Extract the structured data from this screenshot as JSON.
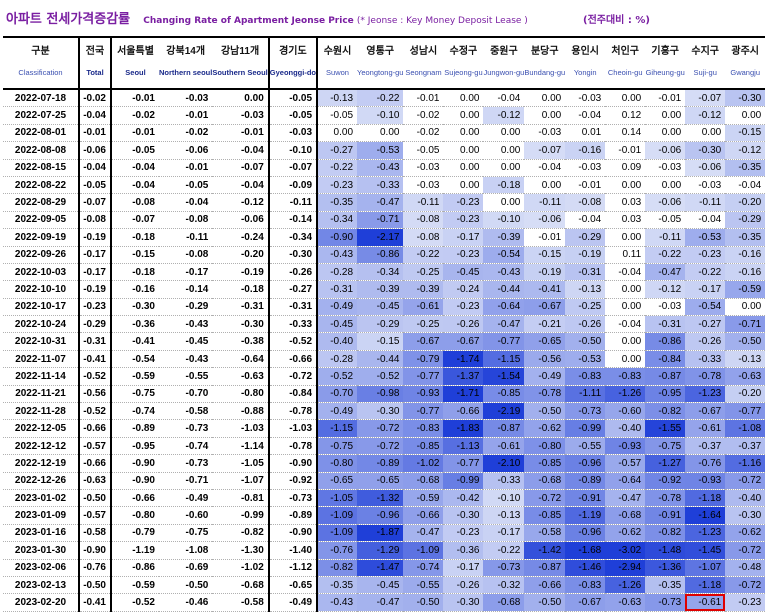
{
  "title": {
    "korean": "아파트 전세가격증감률",
    "english": "Changing Rate of Apartment Jeonse Price",
    "note": "(* Jeonse : Key Money Deposit Lease )",
    "unit": "(전주대비 : %)"
  },
  "columns": [
    {
      "ko": "구분",
      "en": "Classification"
    },
    {
      "ko": "전국",
      "en": "Total"
    },
    {
      "ko": "서울특별",
      "en": "Seoul"
    },
    {
      "ko": "강북14개",
      "en": "Northern seoul"
    },
    {
      "ko": "강남11개",
      "en": "Southern Seoul"
    },
    {
      "ko": "경기도",
      "en": "Gyeonggi-do"
    },
    {
      "ko": "수원시",
      "en": "Suwon"
    },
    {
      "ko": "영통구",
      "en": "Yeongtong-gu"
    },
    {
      "ko": "성남시",
      "en": "Seongnam"
    },
    {
      "ko": "수정구",
      "en": "Sujeong-gu"
    },
    {
      "ko": "중원구",
      "en": "Jungwon-gu"
    },
    {
      "ko": "분당구",
      "en": "Bundang-gu"
    },
    {
      "ko": "용인시",
      "en": "Yongin"
    },
    {
      "ko": "처인구",
      "en": "Cheoin-gu"
    },
    {
      "ko": "기흥구",
      "en": "Giheung-gu"
    },
    {
      "ko": "수지구",
      "en": "Suji-gu"
    },
    {
      "ko": "광주시",
      "en": "Gwangju"
    }
  ],
  "rows": [
    [
      "2022-07-18",
      "-0.02",
      "-0.01",
      "-0.03",
      "0.00",
      "-0.05",
      "-0.13",
      "-0.22",
      "-0.01",
      "0.00",
      "-0.04",
      "0.00",
      "-0.03",
      "0.00",
      "-0.01",
      "-0.07",
      "-0.30"
    ],
    [
      "2022-07-25",
      "-0.04",
      "-0.02",
      "-0.01",
      "-0.03",
      "-0.05",
      "-0.05",
      "-0.10",
      "-0.02",
      "0.00",
      "-0.12",
      "0.00",
      "-0.04",
      "0.12",
      "0.00",
      "-0.12",
      "0.00"
    ],
    [
      "2022-08-01",
      "-0.01",
      "-0.01",
      "-0.02",
      "-0.01",
      "-0.03",
      "0.00",
      "0.00",
      "-0.02",
      "0.00",
      "0.00",
      "-0.03",
      "0.01",
      "0.14",
      "0.00",
      "0.00",
      "-0.15"
    ],
    [
      "2022-08-08",
      "-0.06",
      "-0.05",
      "-0.06",
      "-0.04",
      "-0.10",
      "-0.27",
      "-0.53",
      "-0.05",
      "0.00",
      "0.00",
      "-0.07",
      "-0.16",
      "-0.01",
      "-0.06",
      "-0.30",
      "-0.12"
    ],
    [
      "2022-08-15",
      "-0.04",
      "-0.04",
      "-0.01",
      "-0.07",
      "-0.07",
      "-0.22",
      "-0.43",
      "-0.03",
      "0.00",
      "0.00",
      "-0.04",
      "-0.03",
      "0.09",
      "-0.03",
      "-0.06",
      "-0.35"
    ],
    [
      "2022-08-22",
      "-0.05",
      "-0.04",
      "-0.05",
      "-0.04",
      "-0.09",
      "-0.23",
      "-0.33",
      "-0.03",
      "0.00",
      "-0.18",
      "0.00",
      "-0.01",
      "0.00",
      "0.00",
      "-0.03",
      "-0.04"
    ],
    [
      "2022-08-29",
      "-0.07",
      "-0.08",
      "-0.04",
      "-0.12",
      "-0.11",
      "-0.35",
      "-0.47",
      "-0.11",
      "-0.23",
      "0.00",
      "-0.11",
      "-0.08",
      "0.03",
      "-0.06",
      "-0.11",
      "-0.20"
    ],
    [
      "2022-09-05",
      "-0.08",
      "-0.07",
      "-0.08",
      "-0.06",
      "-0.14",
      "-0.34",
      "-0.71",
      "-0.08",
      "-0.23",
      "-0.10",
      "-0.06",
      "-0.04",
      "0.03",
      "-0.05",
      "-0.04",
      "-0.29"
    ],
    [
      "2022-09-19",
      "-0.19",
      "-0.18",
      "-0.11",
      "-0.24",
      "-0.34",
      "-0.90",
      "-2.17",
      "-0.08",
      "-0.17",
      "-0.39",
      "-0.01",
      "-0.29",
      "0.00",
      "-0.11",
      "-0.53",
      "-0.35"
    ],
    [
      "2022-09-26",
      "-0.17",
      "-0.15",
      "-0.08",
      "-0.20",
      "-0.30",
      "-0.43",
      "-0.86",
      "-0.22",
      "-0.23",
      "-0.54",
      "-0.15",
      "-0.19",
      "0.11",
      "-0.22",
      "-0.23",
      "-0.16"
    ],
    [
      "2022-10-03",
      "-0.17",
      "-0.18",
      "-0.17",
      "-0.19",
      "-0.26",
      "-0.28",
      "-0.34",
      "-0.25",
      "-0.45",
      "-0.43",
      "-0.19",
      "-0.31",
      "-0.04",
      "-0.47",
      "-0.22",
      "-0.16"
    ],
    [
      "2022-10-10",
      "-0.19",
      "-0.16",
      "-0.14",
      "-0.18",
      "-0.27",
      "-0.31",
      "-0.39",
      "-0.39",
      "-0.24",
      "-0.44",
      "-0.41",
      "-0.13",
      "0.00",
      "-0.12",
      "-0.17",
      "-0.59"
    ],
    [
      "2022-10-17",
      "-0.23",
      "-0.30",
      "-0.29",
      "-0.31",
      "-0.31",
      "-0.49",
      "-0.45",
      "-0.61",
      "-0.23",
      "-0.64",
      "-0.67",
      "-0.25",
      "0.00",
      "-0.03",
      "-0.54",
      "0.00"
    ],
    [
      "2022-10-24",
      "-0.29",
      "-0.36",
      "-0.43",
      "-0.30",
      "-0.33",
      "-0.45",
      "-0.29",
      "-0.25",
      "-0.26",
      "-0.47",
      "-0.21",
      "-0.26",
      "-0.04",
      "-0.31",
      "-0.27",
      "-0.71"
    ],
    [
      "2022-10-31",
      "-0.31",
      "-0.41",
      "-0.45",
      "-0.38",
      "-0.52",
      "-0.40",
      "-0.15",
      "-0.67",
      "-0.67",
      "-0.77",
      "-0.65",
      "-0.50",
      "0.00",
      "-0.86",
      "-0.26",
      "-0.50"
    ],
    [
      "2022-11-07",
      "-0.41",
      "-0.54",
      "-0.43",
      "-0.64",
      "-0.66",
      "-0.28",
      "-0.44",
      "-0.79",
      "-1.74",
      "-1.15",
      "-0.56",
      "-0.53",
      "0.00",
      "-0.84",
      "-0.33",
      "-0.13"
    ],
    [
      "2022-11-14",
      "-0.52",
      "-0.59",
      "-0.55",
      "-0.63",
      "-0.72",
      "-0.52",
      "-0.52",
      "-0.77",
      "-1.37",
      "-1.54",
      "-0.49",
      "-0.83",
      "-0.83",
      "-0.87",
      "-0.78",
      "-0.63"
    ],
    [
      "2022-11-21",
      "-0.56",
      "-0.75",
      "-0.70",
      "-0.80",
      "-0.84",
      "-0.70",
      "-0.98",
      "-0.93",
      "-1.71",
      "-0.85",
      "-0.78",
      "-1.11",
      "-1.26",
      "-0.95",
      "-1.23",
      "-0.20"
    ],
    [
      "2022-11-28",
      "-0.52",
      "-0.74",
      "-0.58",
      "-0.88",
      "-0.78",
      "-0.49",
      "-0.30",
      "-0.77",
      "-0.66",
      "-2.19",
      "-0.50",
      "-0.73",
      "-0.60",
      "-0.82",
      "-0.67",
      "-0.77"
    ],
    [
      "2022-12-05",
      "-0.66",
      "-0.89",
      "-0.73",
      "-1.03",
      "-1.03",
      "-1.15",
      "-0.72",
      "-0.83",
      "-1.83",
      "-0.87",
      "-0.62",
      "-0.99",
      "-0.40",
      "-1.55",
      "-0.61",
      "-1.08"
    ],
    [
      "2022-12-12",
      "-0.57",
      "-0.95",
      "-0.74",
      "-1.14",
      "-0.78",
      "-0.75",
      "-0.72",
      "-0.85",
      "-1.13",
      "-0.61",
      "-0.80",
      "-0.55",
      "-0.93",
      "-0.75",
      "-0.37",
      "-0.37"
    ],
    [
      "2022-12-19",
      "-0.66",
      "-0.90",
      "-0.73",
      "-1.05",
      "-0.90",
      "-0.80",
      "-0.89",
      "-1.02",
      "-0.77",
      "-2.10",
      "-0.85",
      "-0.96",
      "-0.57",
      "-1.27",
      "-0.76",
      "-1.16"
    ],
    [
      "2022-12-26",
      "-0.63",
      "-0.90",
      "-0.71",
      "-1.07",
      "-0.92",
      "-0.65",
      "-0.65",
      "-0.68",
      "-0.99",
      "-0.33",
      "-0.68",
      "-0.89",
      "-0.64",
      "-0.92",
      "-0.93",
      "-0.72"
    ],
    [
      "2023-01-02",
      "-0.50",
      "-0.66",
      "-0.49",
      "-0.81",
      "-0.73",
      "-1.05",
      "-1.32",
      "-0.59",
      "-0.42",
      "-0.10",
      "-0.72",
      "-0.91",
      "-0.47",
      "-0.78",
      "-1.18",
      "-0.40"
    ],
    [
      "2023-01-09",
      "-0.57",
      "-0.80",
      "-0.60",
      "-0.99",
      "-0.89",
      "-1.09",
      "-0.96",
      "-0.66",
      "-0.30",
      "-0.13",
      "-0.85",
      "-1.19",
      "-0.68",
      "-0.91",
      "-1.64",
      "-0.30"
    ],
    [
      "2023-01-16",
      "-0.58",
      "-0.79",
      "-0.75",
      "-0.82",
      "-0.90",
      "-1.09",
      "-1.87",
      "-0.47",
      "-0.23",
      "-0.17",
      "-0.58",
      "-0.96",
      "-0.62",
      "-0.82",
      "-1.23",
      "-0.62"
    ],
    [
      "2023-01-30",
      "-0.90",
      "-1.19",
      "-1.08",
      "-1.30",
      "-1.40",
      "-0.76",
      "-1.29",
      "-1.09",
      "-0.36",
      "-0.22",
      "-1.42",
      "-1.68",
      "-3.02",
      "-1.48",
      "-1.45",
      "-0.72"
    ],
    [
      "2023-02-06",
      "-0.76",
      "-0.86",
      "-0.69",
      "-1.02",
      "-1.12",
      "-0.82",
      "-1.47",
      "-0.74",
      "-0.17",
      "-0.73",
      "-0.87",
      "-1.46",
      "-2.94",
      "-1.36",
      "-1.07",
      "-0.48"
    ],
    [
      "2023-02-13",
      "-0.50",
      "-0.59",
      "-0.50",
      "-0.68",
      "-0.65",
      "-0.35",
      "-0.45",
      "-0.55",
      "-0.26",
      "-0.32",
      "-0.66",
      "-0.83",
      "-1.26",
      "-0.35",
      "-1.18",
      "-0.72"
    ],
    [
      "2023-02-20",
      "-0.41",
      "-0.52",
      "-0.46",
      "-0.58",
      "-0.49",
      "-0.43",
      "-0.47",
      "-0.50",
      "-0.30",
      "-0.68",
      "-0.50",
      "-0.67",
      "-0.63",
      "-0.73",
      "-0.61",
      "-0.23"
    ]
  ],
  "highlight": {
    "row_label": "2023-02-20",
    "column": "Suji-gu",
    "color": "#e00000"
  },
  "palette": {
    "title": "#7a1fa2",
    "header_en": "#3a4fb0",
    "shade_light": "#dde3f7",
    "shade_dark": "#1f3fd8"
  }
}
